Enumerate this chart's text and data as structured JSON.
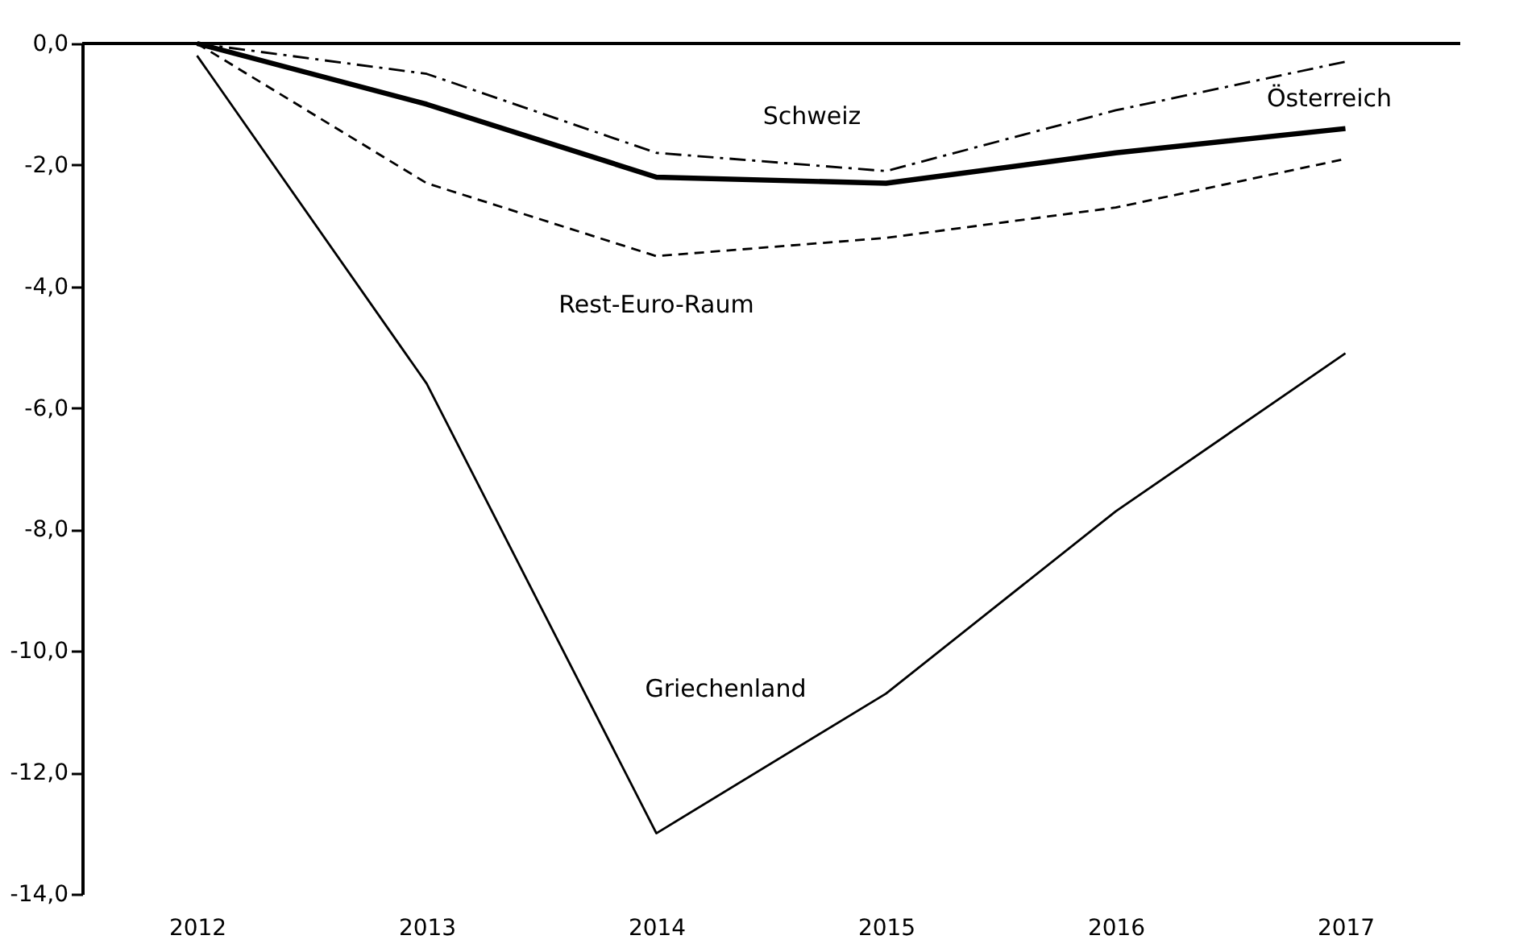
{
  "chart_data": {
    "type": "line",
    "x": [
      2012,
      2013,
      2014,
      2015,
      2016,
      2017
    ],
    "xlim": [
      2011.5,
      2017.5
    ],
    "xticks": [
      2012,
      2013,
      2014,
      2015,
      2016,
      2017
    ],
    "ylim": [
      -14,
      0
    ],
    "yticks": [
      {
        "value": -14,
        "label": "-14,0"
      },
      {
        "value": -12,
        "label": "-12,0"
      },
      {
        "value": -10,
        "label": "-10,0"
      },
      {
        "value": -8,
        "label": "-8,0"
      },
      {
        "value": -6,
        "label": "-6,0"
      },
      {
        "value": -4,
        "label": "-4,0"
      },
      {
        "value": -2,
        "label": "-2,0"
      },
      {
        "value": 0,
        "label": "0,0"
      }
    ],
    "grid": false,
    "legend": false,
    "marker": "none",
    "series": [
      {
        "name": "Griechenland",
        "color": "#000000",
        "line_style": "solid",
        "values": [
          -0.2,
          -5.6,
          -13.0,
          -10.7,
          -7.7,
          -5.1
        ]
      },
      {
        "name": "Österreich",
        "color": "#000000",
        "line_style": "solid",
        "values": [
          0.0,
          -1.0,
          -2.2,
          -2.3,
          -1.8,
          -1.4
        ]
      },
      {
        "name": "Schweiz",
        "color": "#000000",
        "line_style": "dashdot",
        "values": [
          0.0,
          -0.5,
          -1.8,
          -2.1,
          -1.1,
          -0.3
        ]
      },
      {
        "name": "Rest-Euro-Raum",
        "color": "#000000",
        "line_style": "dashed",
        "values": [
          0.0,
          -2.3,
          -3.5,
          -3.2,
          -2.7,
          -1.9
        ]
      }
    ],
    "ref_lines": [
      {
        "axis": "y",
        "value": 0,
        "color": "#000000",
        "line_style": "solid"
      }
    ]
  }
}
